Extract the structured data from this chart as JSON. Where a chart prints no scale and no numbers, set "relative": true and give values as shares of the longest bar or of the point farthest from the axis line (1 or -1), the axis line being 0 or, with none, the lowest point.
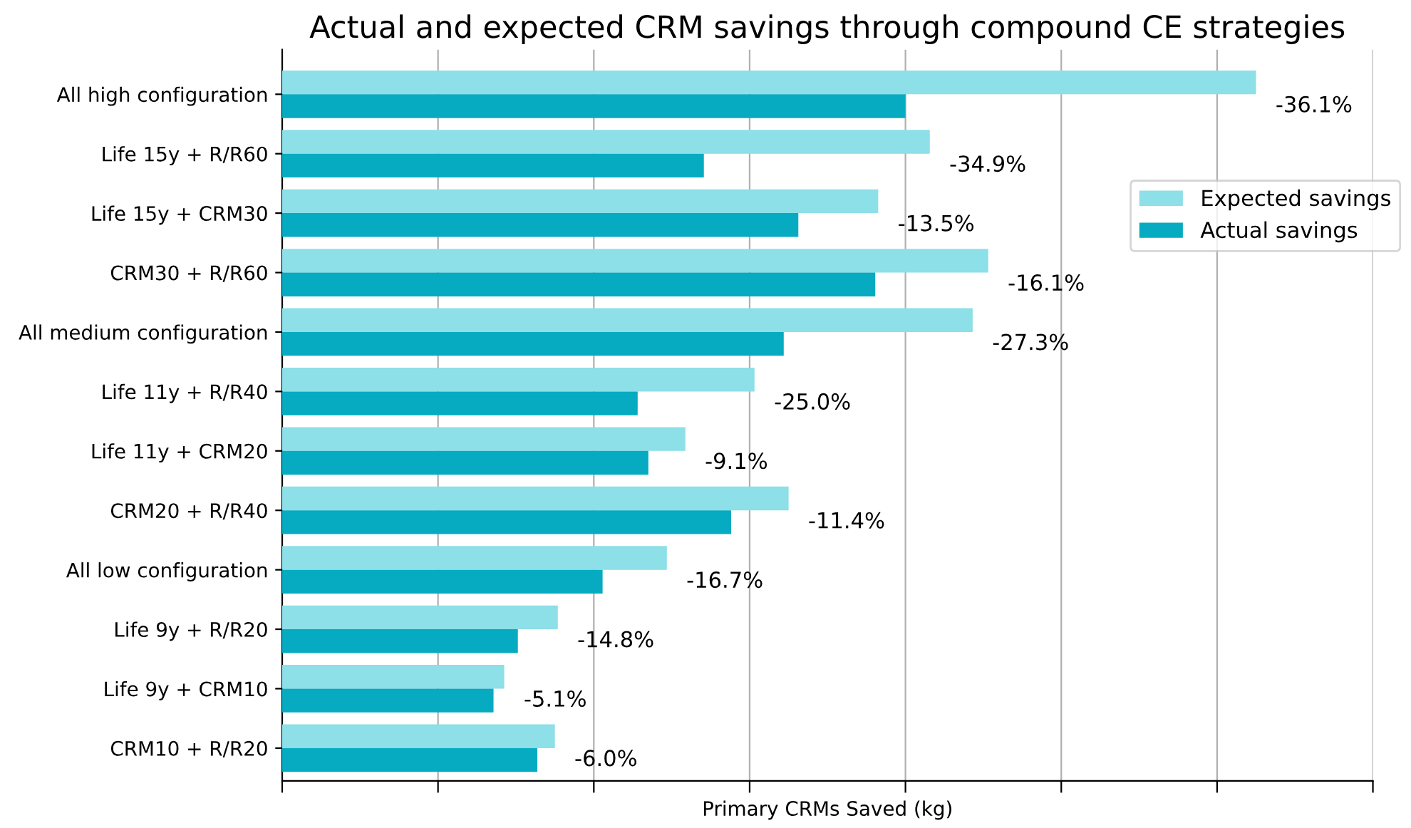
{
  "chart_data": {
    "type": "bar",
    "orientation": "horizontal",
    "relative": true,
    "title": "Actual and expected CRM savings through compound CE strategies",
    "xlabel": "Primary CRMs Saved (kg)",
    "categories": [
      "All high configuration",
      "Life 15y + R/R60",
      "Life 15y + CRM30",
      "CRM30 + R/R60",
      "All medium configuration",
      "Life 11y + R/R40",
      "Life 11y + CRM20",
      "CRM20 + R/R40",
      "All low configuration",
      "Life 9y + R/R20",
      "Life 9y + CRM10",
      "CRM10 + R/R20"
    ],
    "series": [
      {
        "name": "Expected savings",
        "color": "#8ddfe8",
        "values": [
          1.0,
          0.665,
          0.612,
          0.725,
          0.709,
          0.485,
          0.414,
          0.52,
          0.395,
          0.283,
          0.228,
          0.28
        ]
      },
      {
        "name": "Actual savings",
        "color": "#06abc1",
        "values": [
          0.64,
          0.433,
          0.53,
          0.609,
          0.515,
          0.365,
          0.376,
          0.461,
          0.329,
          0.242,
          0.217,
          0.262
        ]
      }
    ],
    "annotations": [
      {
        "text": "-36.1%",
        "x": 1.0,
        "y": "All high configuration"
      },
      {
        "text": "-34.9%",
        "x": 0.665,
        "y": "Life 15y + R/R60"
      },
      {
        "text": "-13.5%",
        "x": 0.612,
        "y": "Life 15y + CRM30"
      },
      {
        "text": "-16.1%",
        "x": 0.725,
        "y": "CRM30 + R/R60"
      },
      {
        "text": "-27.3%",
        "x": 0.709,
        "y": "All medium configuration"
      },
      {
        "text": "-25.0%",
        "x": 0.485,
        "y": "Life 11y + R/R40"
      },
      {
        "text": "-9.1%",
        "x": 0.414,
        "y": "Life 11y + CRM20"
      },
      {
        "text": "-11.4%",
        "x": 0.52,
        "y": "CRM20 + R/R40"
      },
      {
        "text": "-16.7%",
        "x": 0.395,
        "y": "All low configuration"
      },
      {
        "text": "-14.8%",
        "x": 0.283,
        "y": "Life 9y + R/R20"
      },
      {
        "text": "-5.1%",
        "x": 0.228,
        "y": "Life 9y + CRM10"
      },
      {
        "text": "-6.0%",
        "x": 0.28,
        "y": "CRM10 + R/R20"
      }
    ],
    "grid": "x",
    "legend": "top right",
    "tick_labels": "y"
  }
}
